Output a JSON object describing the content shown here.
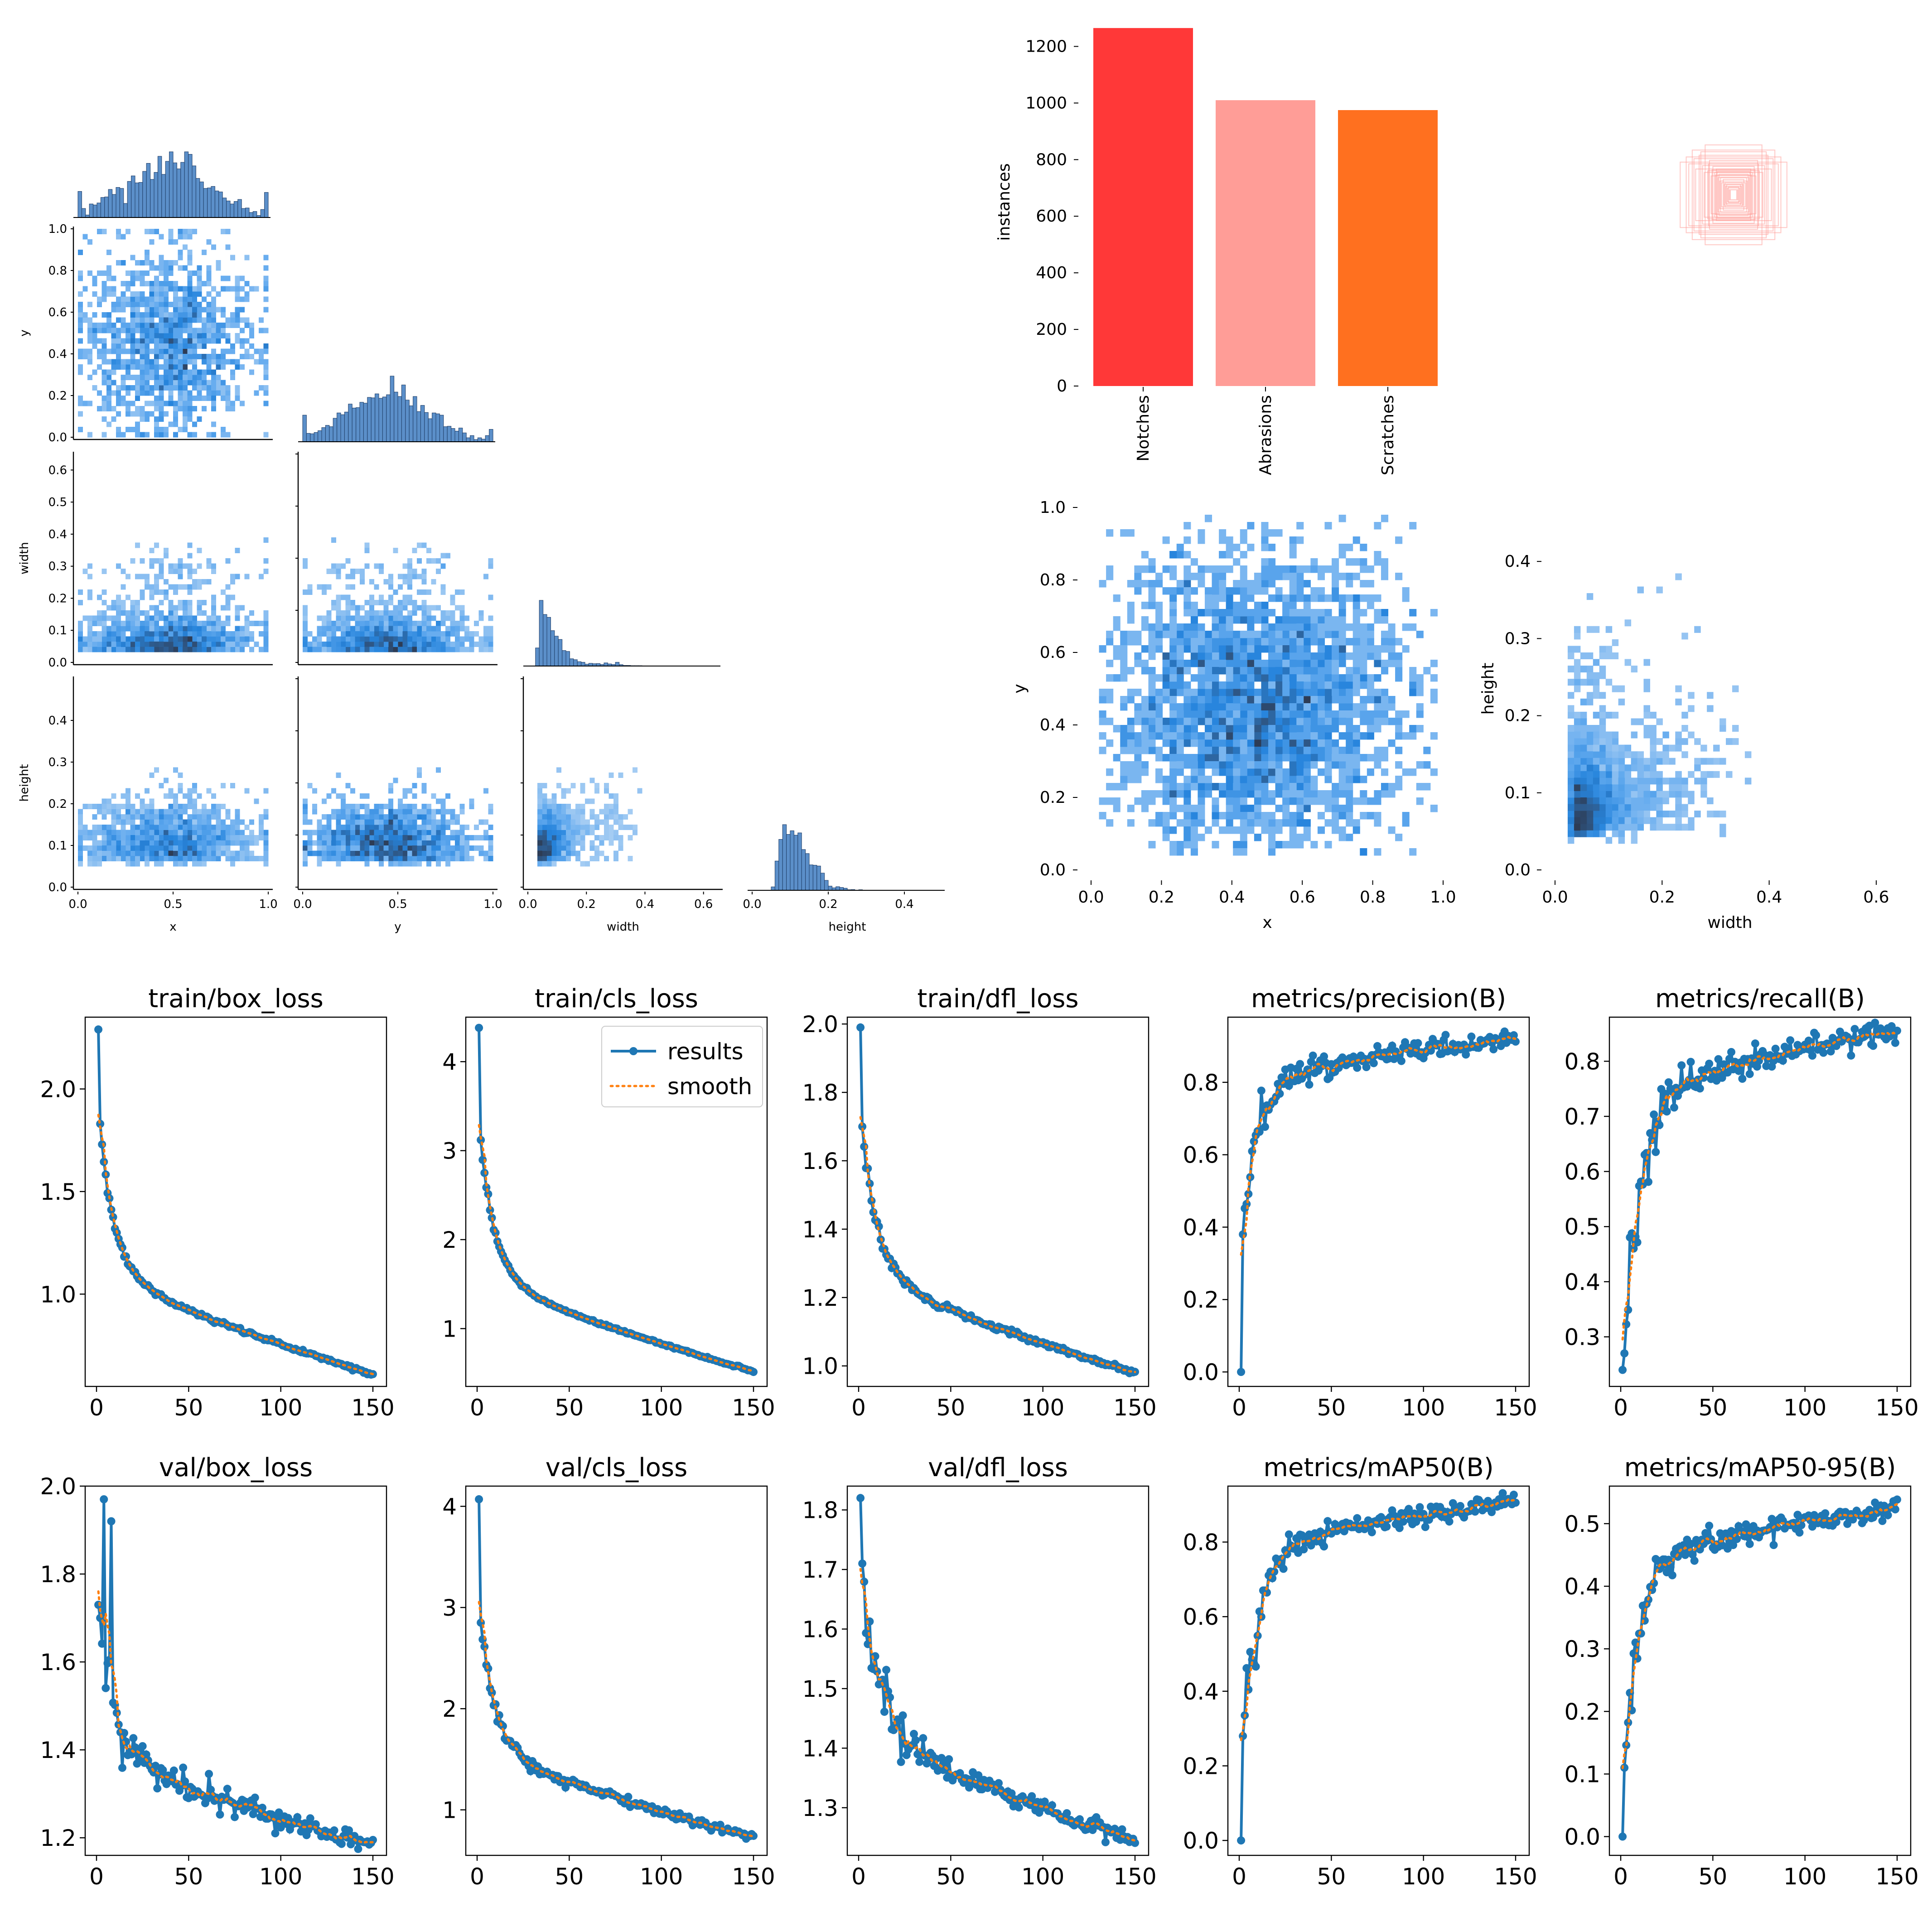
{
  "labels_figure": {
    "class_counts": {
      "type": "bar",
      "categories": [
        "Notches",
        "Abrasions",
        "Scratches"
      ],
      "values": [
        1265,
        1010,
        975
      ],
      "colors": [
        "#ff3838",
        "#ff9d97",
        "#ff701f"
      ],
      "ylabel": "instances",
      "ylim": [
        0,
        1300
      ],
      "yticks": [
        0,
        200,
        400,
        600,
        800,
        1000,
        1200
      ]
    },
    "box_overlay": {
      "description_color": "#ff9d97",
      "boxes": [
        {
          "w": 0.62,
          "h": 0.38
        },
        {
          "w": 0.55,
          "h": 0.44
        },
        {
          "w": 0.48,
          "h": 0.52
        },
        {
          "w": 0.44,
          "h": 0.3
        },
        {
          "w": 0.4,
          "h": 0.46
        },
        {
          "w": 0.36,
          "h": 0.34
        },
        {
          "w": 0.33,
          "h": 0.58
        },
        {
          "w": 0.3,
          "h": 0.28
        },
        {
          "w": 0.28,
          "h": 0.4
        },
        {
          "w": 0.26,
          "h": 0.22
        },
        {
          "w": 0.24,
          "h": 0.33
        },
        {
          "w": 0.22,
          "h": 0.26
        },
        {
          "w": 0.2,
          "h": 0.3
        },
        {
          "w": 0.18,
          "h": 0.2
        },
        {
          "w": 0.17,
          "h": 0.24
        },
        {
          "w": 0.16,
          "h": 0.16
        },
        {
          "w": 0.15,
          "h": 0.2
        },
        {
          "w": 0.14,
          "h": 0.14
        },
        {
          "w": 0.12,
          "h": 0.18
        },
        {
          "w": 0.11,
          "h": 0.12
        },
        {
          "w": 0.1,
          "h": 0.14
        },
        {
          "w": 0.09,
          "h": 0.1
        },
        {
          "w": 0.08,
          "h": 0.12
        },
        {
          "w": 0.07,
          "h": 0.08
        },
        {
          "w": 0.06,
          "h": 0.09
        },
        {
          "w": 0.05,
          "h": 0.06
        },
        {
          "w": 0.04,
          "h": 0.05
        },
        {
          "w": 0.03,
          "h": 0.04
        },
        {
          "w": 0.52,
          "h": 0.36
        },
        {
          "w": 0.46,
          "h": 0.42
        },
        {
          "w": 0.38,
          "h": 0.5
        },
        {
          "w": 0.34,
          "h": 0.26
        },
        {
          "w": 0.29,
          "h": 0.36
        },
        {
          "w": 0.25,
          "h": 0.29
        },
        {
          "w": 0.21,
          "h": 0.23
        },
        {
          "w": 0.19,
          "h": 0.27
        }
      ]
    },
    "xy_heatmap": {
      "type": "heatmap",
      "xlabel": "x",
      "ylabel": "y",
      "xlim": [
        0,
        1
      ],
      "ylim": [
        0,
        1
      ],
      "xticks": [
        "0.0",
        "0.2",
        "0.4",
        "0.6",
        "0.8",
        "1.0"
      ],
      "yticks": [
        "0.0",
        "0.2",
        "0.4",
        "0.6",
        "0.8",
        "1.0"
      ],
      "center": [
        0.47,
        0.45
      ],
      "spread": [
        0.22,
        0.22
      ]
    },
    "wh_heatmap": {
      "type": "heatmap",
      "xlabel": "width",
      "ylabel": "height",
      "xlim": [
        0,
        0.65
      ],
      "ylim": [
        0,
        0.47
      ],
      "xticks": [
        "0.0",
        "0.2",
        "0.4",
        "0.6"
      ],
      "yticks": [
        "0.0",
        "0.1",
        "0.2",
        "0.3",
        "0.4"
      ],
      "center": [
        0.06,
        0.07
      ]
    }
  },
  "correlogram": {
    "variables": [
      "x",
      "y",
      "width",
      "height"
    ],
    "ranges": {
      "x": [
        0,
        1
      ],
      "y": [
        0,
        1
      ],
      "width": [
        0,
        0.65
      ],
      "height": [
        0,
        0.5
      ]
    },
    "ticks": {
      "x": [
        "0.0",
        "0.5",
        "1.0"
      ],
      "y": [
        "0.0",
        "0.5",
        "1.0"
      ],
      "width": [
        "0.0",
        "0.2",
        "0.4",
        "0.6"
      ],
      "height": [
        "0.0",
        "0.2",
        "0.4"
      ],
      "y_axis_y": [
        "0.0",
        "0.2",
        "0.4",
        "0.6",
        "0.8",
        "1.0"
      ],
      "y_axis_width": [
        "0.0",
        "0.1",
        "0.2",
        "0.3",
        "0.4",
        "0.5",
        "0.6"
      ],
      "y_axis_height": [
        "0.0",
        "0.1",
        "0.2",
        "0.3",
        "0.4"
      ]
    }
  },
  "training": {
    "legend": {
      "results": "results",
      "smooth": "smooth"
    },
    "colors": {
      "results": "#1f77b4",
      "smooth": "#ff7f0e"
    },
    "epochs": 150,
    "xticks": [
      "0",
      "50",
      "100",
      "150"
    ],
    "plots": [
      {
        "title": "train/box_loss",
        "start": 2.29,
        "second": 1.83,
        "end": 0.61,
        "ymin": 0.55,
        "ymax": 2.35,
        "yticks": [
          "1.0",
          "1.5",
          "2.0"
        ],
        "ytickvals": [
          1.0,
          1.5,
          2.0
        ],
        "shape": "decay",
        "noise": 0.004
      },
      {
        "title": "train/cls_loss",
        "start": 4.38,
        "second": 3.12,
        "end": 0.52,
        "ymin": 0.35,
        "ymax": 4.5,
        "yticks": [
          "1",
          "2",
          "3",
          "4"
        ],
        "ytickvals": [
          1,
          2,
          3,
          4
        ],
        "shape": "decay",
        "noise": 0.005,
        "legend": true
      },
      {
        "title": "train/dfl_loss",
        "start": 1.99,
        "second": 1.7,
        "end": 0.98,
        "ymin": 0.94,
        "ymax": 2.02,
        "yticks": [
          "1.0",
          "1.2",
          "1.4",
          "1.6",
          "1.8",
          "2.0"
        ],
        "ytickvals": [
          1.0,
          1.2,
          1.4,
          1.6,
          1.8,
          2.0
        ],
        "shape": "decay",
        "noise": 0.004
      },
      {
        "title": "metrics/precision(B)",
        "start": 0.0,
        "second": 0.38,
        "end": 0.92,
        "ymin": -0.04,
        "ymax": 0.98,
        "yticks": [
          "0.0",
          "0.2",
          "0.4",
          "0.6",
          "0.8"
        ],
        "ytickvals": [
          0.0,
          0.2,
          0.4,
          0.6,
          0.8
        ],
        "shape": "rise",
        "noise": 0.012
      },
      {
        "title": "metrics/recall(B)",
        "start": 0.24,
        "second": 0.27,
        "end": 0.855,
        "ymin": 0.21,
        "ymax": 0.88,
        "yticks": [
          "0.3",
          "0.4",
          "0.5",
          "0.6",
          "0.7",
          "0.8"
        ],
        "ytickvals": [
          0.3,
          0.4,
          0.5,
          0.6,
          0.7,
          0.8
        ],
        "shape": "rise",
        "noise": 0.012
      },
      {
        "title": "val/box_loss",
        "start": 1.73,
        "second": 1.7,
        "end": 1.18,
        "ymin": 1.16,
        "ymax": 2.0,
        "yticks": [
          "1.2",
          "1.4",
          "1.6",
          "1.8",
          "2.0"
        ],
        "ytickvals": [
          1.2,
          1.4,
          1.6,
          1.8,
          2.0
        ],
        "shape": "decay",
        "noise": 0.012,
        "spike": [
          1.97,
          1.92
        ]
      },
      {
        "title": "val/cls_loss",
        "start": 4.07,
        "second": 2.85,
        "end": 0.73,
        "ymin": 0.55,
        "ymax": 4.2,
        "yticks": [
          "1",
          "2",
          "3",
          "4"
        ],
        "ytickvals": [
          1,
          2,
          3,
          4
        ],
        "shape": "decay",
        "noise": 0.02
      },
      {
        "title": "val/dfl_loss",
        "start": 1.82,
        "second": 1.71,
        "end": 1.245,
        "ymin": 1.22,
        "ymax": 1.84,
        "yticks": [
          "1.3",
          "1.4",
          "1.5",
          "1.6",
          "1.7",
          "1.8"
        ],
        "ytickvals": [
          1.3,
          1.4,
          1.5,
          1.6,
          1.7,
          1.8
        ],
        "shape": "decay",
        "noise": 0.008
      },
      {
        "title": "metrics/mAP50(B)",
        "start": 0.0,
        "second": 0.28,
        "end": 0.905,
        "ymin": -0.04,
        "ymax": 0.95,
        "yticks": [
          "0.0",
          "0.2",
          "0.4",
          "0.6",
          "0.8"
        ],
        "ytickvals": [
          0.0,
          0.2,
          0.4,
          0.6,
          0.8
        ],
        "shape": "rise",
        "noise": 0.012
      },
      {
        "title": "metrics/mAP50-95(B)",
        "start": 0.0,
        "second": 0.11,
        "end": 0.525,
        "ymin": -0.03,
        "ymax": 0.56,
        "yticks": [
          "0.0",
          "0.1",
          "0.2",
          "0.3",
          "0.4",
          "0.5"
        ],
        "ytickvals": [
          0.0,
          0.1,
          0.2,
          0.3,
          0.4,
          0.5
        ],
        "shape": "rise",
        "noise": 0.008
      }
    ]
  },
  "chart_data": [
    {
      "type": "bar",
      "title": "",
      "categories": [
        "Notches",
        "Abrasions",
        "Scratches"
      ],
      "values": [
        1265,
        1010,
        975
      ],
      "xlabel": "",
      "ylabel": "instances",
      "ylim": [
        0,
        1300
      ]
    },
    {
      "type": "heatmap",
      "title": "",
      "xlabel": "x",
      "ylabel": "y",
      "xlim": [
        0,
        1
      ],
      "ylim": [
        0,
        1
      ]
    },
    {
      "type": "heatmap",
      "title": "",
      "xlabel": "width",
      "ylabel": "height",
      "xlim": [
        0,
        0.65
      ],
      "ylim": [
        0,
        0.47
      ]
    },
    {
      "type": "line",
      "title": "train/box_loss",
      "x": [
        1,
        150
      ],
      "series": [
        {
          "name": "results",
          "values": [
            2.29,
            0.61
          ]
        }
      ]
    },
    {
      "type": "line",
      "title": "train/cls_loss",
      "x": [
        1,
        150
      ],
      "series": [
        {
          "name": "results",
          "values": [
            4.38,
            0.52
          ]
        }
      ]
    },
    {
      "type": "line",
      "title": "train/dfl_loss",
      "x": [
        1,
        150
      ],
      "series": [
        {
          "name": "results",
          "values": [
            1.99,
            0.98
          ]
        }
      ]
    },
    {
      "type": "line",
      "title": "metrics/precision(B)",
      "x": [
        1,
        150
      ],
      "series": [
        {
          "name": "results",
          "values": [
            0.0,
            0.92
          ]
        }
      ]
    },
    {
      "type": "line",
      "title": "metrics/recall(B)",
      "x": [
        1,
        150
      ],
      "series": [
        {
          "name": "results",
          "values": [
            0.24,
            0.855
          ]
        }
      ]
    },
    {
      "type": "line",
      "title": "val/box_loss",
      "x": [
        1,
        150
      ],
      "series": [
        {
          "name": "results",
          "values": [
            1.73,
            1.18
          ]
        }
      ]
    },
    {
      "type": "line",
      "title": "val/cls_loss",
      "x": [
        1,
        150
      ],
      "series": [
        {
          "name": "results",
          "values": [
            4.07,
            0.73
          ]
        }
      ]
    },
    {
      "type": "line",
      "title": "val/dfl_loss",
      "x": [
        1,
        150
      ],
      "series": [
        {
          "name": "results",
          "values": [
            1.82,
            1.245
          ]
        }
      ]
    },
    {
      "type": "line",
      "title": "metrics/mAP50(B)",
      "x": [
        1,
        150
      ],
      "series": [
        {
          "name": "results",
          "values": [
            0.0,
            0.905
          ]
        }
      ]
    },
    {
      "type": "line",
      "title": "metrics/mAP50-95(B)",
      "x": [
        1,
        150
      ],
      "series": [
        {
          "name": "results",
          "values": [
            0.0,
            0.525
          ]
        }
      ]
    }
  ]
}
